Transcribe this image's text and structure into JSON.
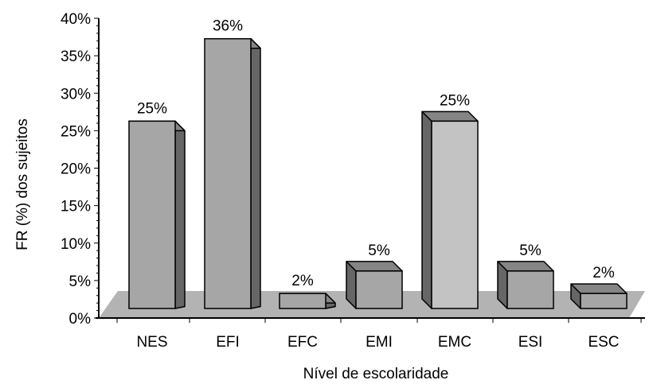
{
  "chart_data": {
    "type": "bar",
    "title": "",
    "xlabel": "Nível de escolaridade",
    "ylabel": "FR (%) dos sujeitos",
    "categories": [
      "NES",
      "EFI",
      "EFC",
      "EMI",
      "EMC",
      "ESI",
      "ESC"
    ],
    "values": [
      25,
      36,
      2,
      5,
      25,
      5,
      2
    ],
    "data_labels": [
      "25%",
      "36%",
      "2%",
      "5%",
      "25%",
      "5%",
      "2%"
    ],
    "ylim": [
      0,
      40
    ],
    "yticks": [
      0,
      5,
      10,
      15,
      20,
      25,
      30,
      35,
      40
    ],
    "ytick_labels": [
      "0%",
      "5%",
      "10%",
      "15%",
      "20%",
      "25%",
      "30%",
      "35%",
      "40%"
    ],
    "grid": false,
    "legend": "none",
    "style": "3d-bar",
    "colors": {
      "front": "#a6a6a6",
      "side": "#666666",
      "top": "#858585",
      "floor": "#b3b3b3",
      "highlight_front": "#c3c3c3",
      "edge": "#000000"
    }
  }
}
